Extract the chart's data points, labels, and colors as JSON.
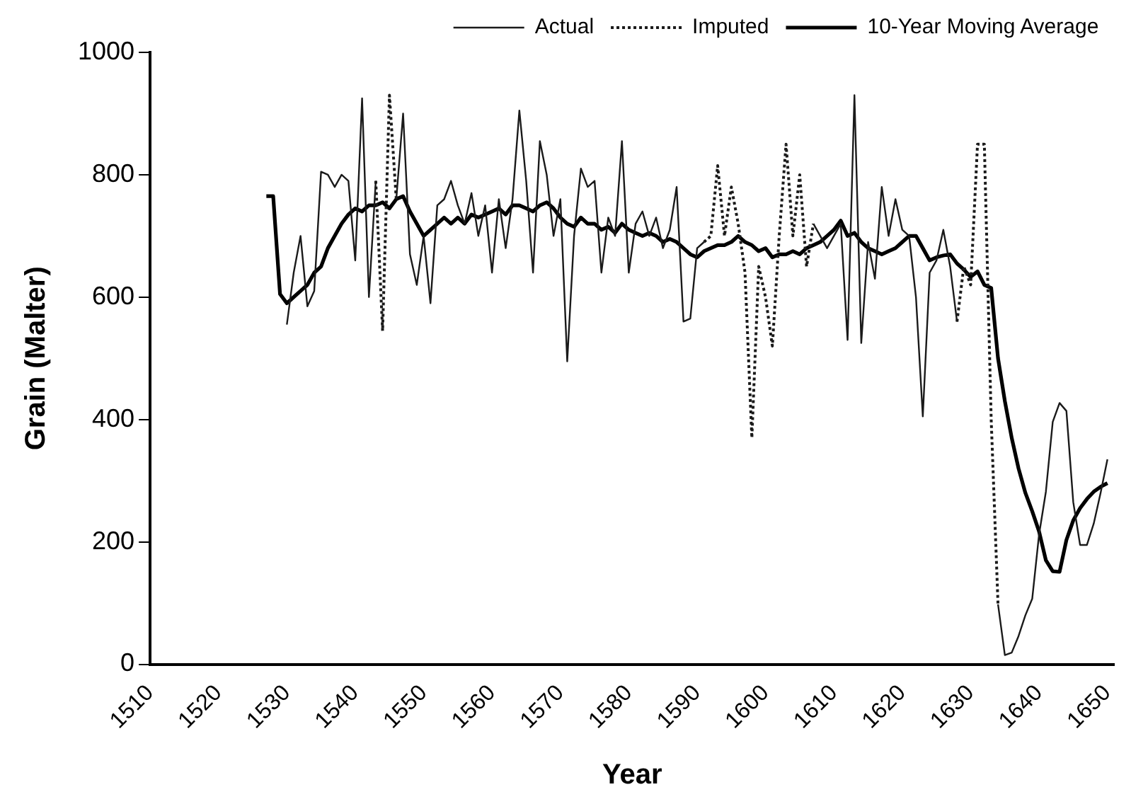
{
  "chart_data": {
    "type": "line",
    "xlabel": "Year",
    "ylabel": "Grain (Malter)",
    "xlim": [
      1510,
      1651
    ],
    "xticks": [
      1510,
      1520,
      1530,
      1540,
      1550,
      1560,
      1570,
      1580,
      1590,
      1600,
      1610,
      1620,
      1630,
      1640,
      1650
    ],
    "ylim": [
      0,
      1000
    ],
    "yticks": [
      0,
      200,
      400,
      600,
      800,
      1000
    ],
    "grid": false,
    "legend": "top",
    "marker": "none",
    "series": [
      {
        "name": "Actual",
        "color": "#1a1a1a",
        "line_style": "solid",
        "x": [
          1530,
          1531,
          1532,
          1533,
          1534,
          1535,
          1536,
          1537,
          1538,
          1539,
          1540,
          1541,
          1542,
          1543,
          1544,
          1545,
          1546,
          1547,
          1548,
          1549,
          1550,
          1551,
          1552,
          1553,
          1554,
          1555,
          1556,
          1557,
          1558,
          1559,
          1560,
          1561,
          1562,
          1563,
          1564,
          1565,
          1566,
          1567,
          1568,
          1569,
          1570,
          1571,
          1572,
          1573,
          1574,
          1575,
          1576,
          1577,
          1578,
          1579,
          1580,
          1581,
          1582,
          1583,
          1584,
          1585,
          1586,
          1587,
          1588,
          1589,
          1590,
          1591,
          1592,
          1593,
          1594,
          1595,
          1596,
          1597,
          1598,
          1599,
          1600,
          1601,
          1602,
          1603,
          1604,
          1605,
          1606,
          1607,
          1608,
          1609,
          1610,
          1611,
          1612,
          1613,
          1614,
          1615,
          1616,
          1617,
          1618,
          1619,
          1620,
          1621,
          1622,
          1623,
          1624,
          1625,
          1626,
          1627,
          1628,
          1629,
          1630,
          1631,
          1632,
          1633,
          1634,
          1635,
          1636,
          1637,
          1638,
          1639,
          1640,
          1641,
          1642,
          1643,
          1644,
          1645,
          1646,
          1647,
          1648,
          1649,
          1650
        ],
        "values": [
          555,
          640,
          700,
          585,
          610,
          805,
          800,
          780,
          800,
          790,
          660,
          925,
          600,
          790,
          null,
          null,
          760,
          900,
          670,
          620,
          700,
          590,
          750,
          760,
          790,
          750,
          720,
          770,
          700,
          750,
          640,
          760,
          680,
          760,
          905,
          790,
          640,
          855,
          800,
          700,
          760,
          495,
          700,
          810,
          780,
          790,
          640,
          730,
          700,
          855,
          640,
          720,
          740,
          700,
          730,
          680,
          710,
          780,
          560,
          565,
          680,
          690,
          null,
          null,
          null,
          null,
          null,
          null,
          null,
          null,
          null,
          null,
          null,
          null,
          null,
          null,
          null,
          720,
          700,
          680,
          700,
          720,
          530,
          930,
          525,
          690,
          630,
          780,
          700,
          760,
          710,
          700,
          600,
          405,
          640,
          660,
          710,
          650,
          560,
          null,
          null,
          null,
          null,
          null,
          98,
          15,
          19,
          46,
          80,
          107,
          212,
          282,
          396,
          427,
          414,
          265,
          195,
          195,
          230,
          280,
          335
        ]
      },
      {
        "name": "Imputed",
        "color": "#1a1a1a",
        "line_style": "dotted",
        "x": [
          1543,
          1544,
          1545,
          1546,
          1547,
          1591,
          1592,
          1593,
          1594,
          1595,
          1596,
          1597,
          1598,
          1599,
          1600,
          1601,
          1602,
          1603,
          1604,
          1605,
          1606,
          1607,
          1608,
          1628,
          1629,
          1630,
          1631,
          1632,
          1633,
          1634
        ],
        "values": [
          790,
          545,
          930,
          760,
          null,
          690,
          700,
          815,
          700,
          780,
          720,
          640,
          370,
          650,
          600,
          520,
          700,
          850,
          700,
          800,
          650,
          720,
          null,
          560,
          650,
          620,
          850,
          850,
          400,
          98
        ]
      },
      {
        "name": "10-Year Moving Average",
        "color": "#000000",
        "line_style": "solid",
        "x": [
          1527,
          1528,
          1529,
          1530,
          1531,
          1532,
          1533,
          1534,
          1535,
          1536,
          1537,
          1538,
          1539,
          1540,
          1541,
          1542,
          1543,
          1544,
          1545,
          1546,
          1547,
          1548,
          1549,
          1550,
          1551,
          1552,
          1553,
          1554,
          1555,
          1556,
          1557,
          1558,
          1559,
          1560,
          1561,
          1562,
          1563,
          1564,
          1565,
          1566,
          1567,
          1568,
          1569,
          1570,
          1571,
          1572,
          1573,
          1574,
          1575,
          1576,
          1577,
          1578,
          1579,
          1580,
          1581,
          1582,
          1583,
          1584,
          1585,
          1586,
          1587,
          1588,
          1589,
          1590,
          1591,
          1592,
          1593,
          1594,
          1595,
          1596,
          1597,
          1598,
          1599,
          1600,
          1601,
          1602,
          1603,
          1604,
          1605,
          1606,
          1607,
          1608,
          1609,
          1610,
          1611,
          1612,
          1613,
          1614,
          1615,
          1616,
          1617,
          1618,
          1619,
          1620,
          1621,
          1622,
          1623,
          1624,
          1625,
          1626,
          1627,
          1628,
          1629,
          1630,
          1631,
          1632,
          1633,
          1634,
          1635,
          1636,
          1637,
          1638,
          1639,
          1640,
          1641,
          1642,
          1643,
          1644,
          1645,
          1646,
          1647,
          1648,
          1649,
          1650
        ],
        "values": [
          765,
          765,
          605,
          590,
          600,
          610,
          620,
          640,
          650,
          680,
          700,
          720,
          735,
          745,
          740,
          750,
          750,
          755,
          745,
          760,
          765,
          740,
          720,
          700,
          710,
          720,
          730,
          720,
          730,
          720,
          735,
          730,
          735,
          740,
          745,
          735,
          750,
          750,
          745,
          740,
          750,
          755,
          745,
          730,
          720,
          715,
          730,
          720,
          720,
          710,
          715,
          705,
          720,
          710,
          705,
          700,
          705,
          700,
          690,
          695,
          690,
          680,
          670,
          665,
          675,
          680,
          685,
          685,
          690,
          700,
          690,
          685,
          675,
          680,
          665,
          670,
          670,
          675,
          670,
          680,
          685,
          690,
          700,
          710,
          725,
          700,
          705,
          690,
          680,
          675,
          670,
          675,
          680,
          690,
          700,
          700,
          680,
          660,
          665,
          668,
          670,
          655,
          645,
          633,
          642,
          620,
          615,
          500,
          430,
          370,
          320,
          280,
          250,
          217,
          170,
          152,
          151,
          203,
          235,
          255,
          270,
          282,
          290,
          296
        ]
      }
    ]
  }
}
